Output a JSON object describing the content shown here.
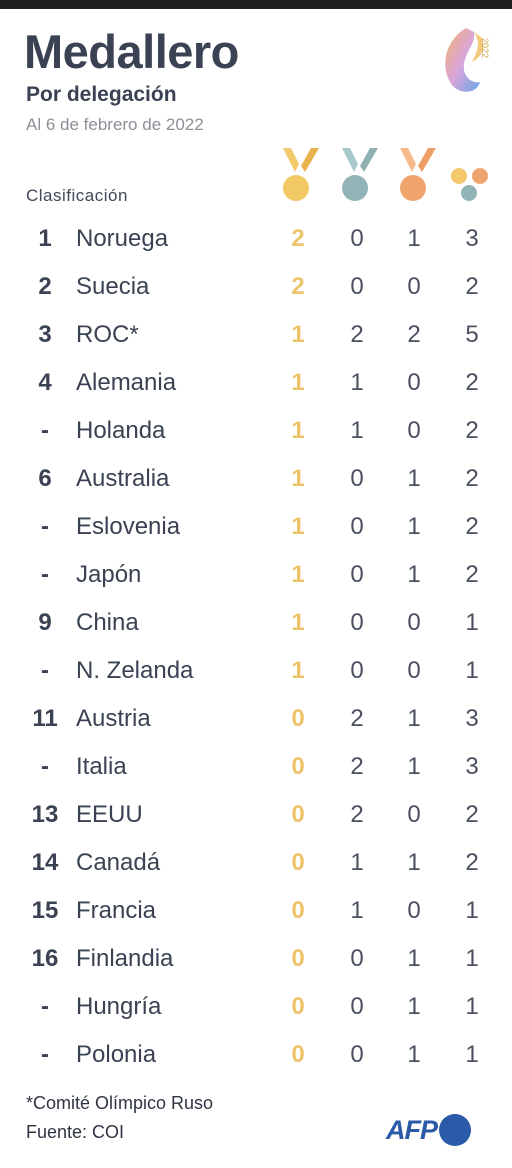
{
  "header": {
    "title": "Medallero",
    "subtitle": "Por delegación",
    "date": "Al 6 de febrero de 2022",
    "logo_year": "2022"
  },
  "table": {
    "column_header": "Clasificación",
    "medal_columns": [
      "gold-medal-icon",
      "silver-medal-icon",
      "bronze-medal-icon",
      "total-medals-icon"
    ],
    "colors": {
      "gold": "#ecc36a",
      "silver": "#8fb1b4",
      "bronze": "#f0a56f",
      "text": "#3a4253"
    }
  },
  "chart_data": {
    "type": "table",
    "columns": [
      "Clasificación",
      "",
      "Oro",
      "Plata",
      "Bronce",
      "Total"
    ],
    "rows": [
      {
        "rank": "1",
        "country": "Noruega",
        "gold": "2",
        "silver": "0",
        "bronze": "1",
        "total": "3"
      },
      {
        "rank": "2",
        "country": "Suecia",
        "gold": "2",
        "silver": "0",
        "bronze": "0",
        "total": "2"
      },
      {
        "rank": "3",
        "country": "ROC*",
        "gold": "1",
        "silver": "2",
        "bronze": "2",
        "total": "5"
      },
      {
        "rank": "4",
        "country": "Alemania",
        "gold": "1",
        "silver": "1",
        "bronze": "0",
        "total": "2"
      },
      {
        "rank": "-",
        "country": "Holanda",
        "gold": "1",
        "silver": "1",
        "bronze": "0",
        "total": "2"
      },
      {
        "rank": "6",
        "country": "Australia",
        "gold": "1",
        "silver": "0",
        "bronze": "1",
        "total": "2"
      },
      {
        "rank": "-",
        "country": "Eslovenia",
        "gold": "1",
        "silver": "0",
        "bronze": "1",
        "total": "2"
      },
      {
        "rank": "-",
        "country": "Japón",
        "gold": "1",
        "silver": "0",
        "bronze": "1",
        "total": "2"
      },
      {
        "rank": "9",
        "country": "China",
        "gold": "1",
        "silver": "0",
        "bronze": "0",
        "total": "1"
      },
      {
        "rank": "-",
        "country": "N. Zelanda",
        "gold": "1",
        "silver": "0",
        "bronze": "0",
        "total": "1"
      },
      {
        "rank": "11",
        "country": "Austria",
        "gold": "0",
        "silver": "2",
        "bronze": "1",
        "total": "3"
      },
      {
        "rank": "-",
        "country": "Italia",
        "gold": "0",
        "silver": "2",
        "bronze": "1",
        "total": "3"
      },
      {
        "rank": "13",
        "country": "EEUU",
        "gold": "0",
        "silver": "2",
        "bronze": "0",
        "total": "2"
      },
      {
        "rank": "14",
        "country": "Canadá",
        "gold": "0",
        "silver": "1",
        "bronze": "1",
        "total": "2"
      },
      {
        "rank": "15",
        "country": "Francia",
        "gold": "0",
        "silver": "1",
        "bronze": "0",
        "total": "1"
      },
      {
        "rank": "16",
        "country": "Finlandia",
        "gold": "0",
        "silver": "0",
        "bronze": "1",
        "total": "1"
      },
      {
        "rank": "-",
        "country": "Hungría",
        "gold": "0",
        "silver": "0",
        "bronze": "1",
        "total": "1"
      },
      {
        "rank": "-",
        "country": "Polonia",
        "gold": "0",
        "silver": "0",
        "bronze": "1",
        "total": "1"
      }
    ]
  },
  "footer": {
    "footnote": "*Comité Olímpico Ruso",
    "source": "Fuente: COI",
    "brand": "AFP"
  }
}
